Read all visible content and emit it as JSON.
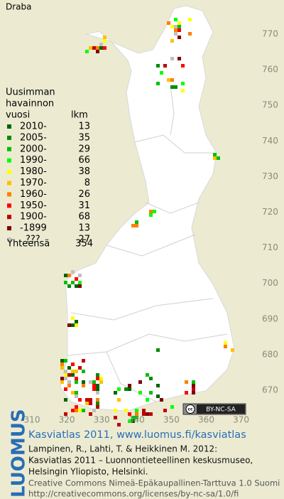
{
  "map": {
    "title": "Draba",
    "legend": {
      "heading": [
        "Uusimman",
        "havainnon",
        "vuosi"
      ],
      "count_heading": "lkm",
      "items": [
        {
          "label": "2010-",
          "count": 13,
          "color": "#006400"
        },
        {
          "label": "2005-",
          "count": 35,
          "color": "#008c00"
        },
        {
          "label": "2000-",
          "count": 29,
          "color": "#00c000"
        },
        {
          "label": "1990-",
          "count": 66,
          "color": "#00ff00"
        },
        {
          "label": "1980-",
          "count": 38,
          "color": "#ffff00"
        },
        {
          "label": "1970-",
          "count": 8,
          "color": "#ffc000"
        },
        {
          "label": "1960-",
          "count": 26,
          "color": "#ff8000"
        },
        {
          "label": "1950-",
          "count": 31,
          "color": "#ff0000"
        },
        {
          "label": "1900-",
          "count": 68,
          "color": "#c00000"
        },
        {
          "label": "-1899",
          "count": 13,
          "color": "#800000"
        },
        {
          "label": "???",
          "count": 27,
          "color": "#c0c0c0"
        }
      ],
      "total": {
        "label": "Yhteensä",
        "count": 354
      }
    },
    "y_ticks": [
      770,
      760,
      750,
      740,
      730,
      720,
      710,
      700,
      690,
      680,
      670
    ],
    "x_ticks": [
      310,
      320,
      330,
      340,
      350,
      360,
      370
    ],
    "license_badge": "BY-NC-SA"
  },
  "footer": {
    "logo": "LUOMUS",
    "title": "Kasviatlas 2011, www.luomus.fi/kasviatlas",
    "citation": [
      "Lampinen, R., Lahti, T. & Heikkinen M. 2012:",
      "Kasviatlas 2011 – Luonnontieteellinen keskusmuseo,",
      "Helsingin Yliopisto, Helsinki."
    ],
    "license": [
      "Creative Commons Nimeä-Epäkaupallinen-Tarttuva 1.0 Suomi",
      "http://creativecommons.org/licenses/by-nc-sa/1.0/fi"
    ]
  }
}
